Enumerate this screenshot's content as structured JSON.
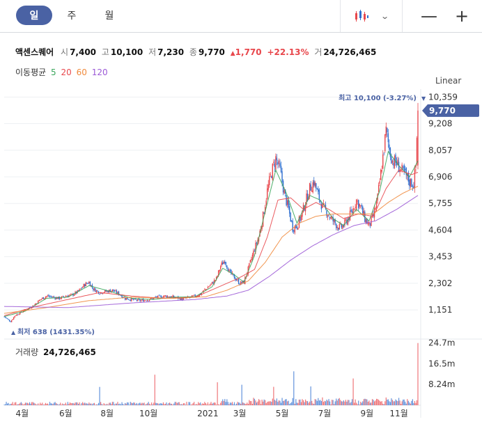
{
  "toolbar": {
    "period_tabs": [
      "일",
      "주",
      "월"
    ],
    "active_period": "일",
    "chart_type_icon": "candlestick-icon",
    "zoom_out_icon": "minus-icon",
    "zoom_in_icon": "plus-icon"
  },
  "quote": {
    "name": "액센스퀘어",
    "open_label": "시",
    "open": "7,400",
    "high_label": "고",
    "high": "10,100",
    "low_label": "저",
    "low": "7,230",
    "close_label": "종",
    "close": "9,770",
    "change": "1,770",
    "change_pct": "+22.13%",
    "volume_label": "거",
    "volume": "24,726,465"
  },
  "moving_averages": {
    "label": "이동평균",
    "periods": [
      {
        "value": "5",
        "color": "#3aa65b"
      },
      {
        "value": "20",
        "color": "#e8474c"
      },
      {
        "value": "60",
        "color": "#f08a3c"
      },
      {
        "value": "120",
        "color": "#9b59d6"
      }
    ]
  },
  "scale_mode": "Linear",
  "volume_panel": {
    "label": "거래량",
    "value": "24,726,465"
  },
  "colors": {
    "up": "#e8474c",
    "down": "#2f6fd0",
    "accent": "#4a62a4"
  },
  "chart_data": {
    "type": "candlestick",
    "y_ticks": [
      "10,359",
      "9,208",
      "8,057",
      "6,906",
      "5,755",
      "4,604",
      "3,453",
      "2,302",
      "1,151"
    ],
    "y_tick_values": [
      10359,
      9208,
      8057,
      6906,
      5755,
      4604,
      3453,
      2302,
      1151
    ],
    "ylim": [
      0,
      10359
    ],
    "x_ticks": [
      "4월",
      "6월",
      "8월",
      "10월",
      "2021",
      "3월",
      "5월",
      "7월",
      "9월",
      "11월"
    ],
    "current_price_label": "9,770",
    "current_price": 9770,
    "high_annotation": "최고 10,100 (-3.27%)",
    "high_value": 10100,
    "low_annotation": "최저 638 (1431.35%)",
    "low_value": 638,
    "volume_ticks": [
      "24.7m",
      "16.5m",
      "8.24m"
    ],
    "volume_tick_values": [
      24.7,
      16.5,
      8.24
    ],
    "volume_unit": "m",
    "close_path": [
      [
        0,
        860
      ],
      [
        6,
        640
      ],
      [
        10,
        900
      ],
      [
        16,
        1050
      ],
      [
        20,
        1150
      ],
      [
        28,
        1350
      ],
      [
        34,
        1600
      ],
      [
        40,
        1750
      ],
      [
        46,
        1700
      ],
      [
        52,
        1650
      ],
      [
        58,
        1750
      ],
      [
        64,
        1800
      ],
      [
        70,
        1950
      ],
      [
        76,
        2250
      ],
      [
        80,
        2350
      ],
      [
        84,
        2050
      ],
      [
        90,
        1900
      ],
      [
        96,
        1950
      ],
      [
        102,
        2000
      ],
      [
        108,
        1850
      ],
      [
        114,
        1650
      ],
      [
        120,
        1600
      ],
      [
        128,
        1550
      ],
      [
        136,
        1600
      ],
      [
        144,
        1700
      ],
      [
        152,
        1750
      ],
      [
        160,
        1700
      ],
      [
        168,
        1620
      ],
      [
        176,
        1700
      ],
      [
        184,
        1800
      ],
      [
        190,
        2050
      ],
      [
        196,
        2300
      ],
      [
        200,
        2500
      ],
      [
        204,
        3050
      ],
      [
        208,
        3300
      ],
      [
        212,
        2800
      ],
      [
        218,
        2500
      ],
      [
        222,
        2300
      ],
      [
        226,
        2350
      ],
      [
        232,
        3200
      ],
      [
        236,
        3800
      ],
      [
        240,
        4300
      ],
      [
        244,
        5200
      ],
      [
        248,
        6300
      ],
      [
        252,
        7100
      ],
      [
        256,
        7700
      ],
      [
        260,
        7200
      ],
      [
        264,
        6200
      ],
      [
        268,
        5500
      ],
      [
        272,
        4700
      ],
      [
        276,
        4800
      ],
      [
        280,
        5200
      ],
      [
        284,
        5800
      ],
      [
        288,
        6400
      ],
      [
        292,
        6700
      ],
      [
        296,
        6100
      ],
      [
        300,
        5600
      ],
      [
        304,
        5400
      ],
      [
        308,
        5100
      ],
      [
        312,
        4900
      ],
      [
        316,
        4700
      ],
      [
        320,
        4800
      ],
      [
        324,
        5100
      ],
      [
        328,
        5400
      ],
      [
        332,
        5900
      ],
      [
        336,
        5600
      ],
      [
        340,
        5100
      ],
      [
        344,
        4800
      ],
      [
        348,
        5200
      ],
      [
        352,
        6000
      ],
      [
        356,
        7400
      ],
      [
        360,
        8900
      ],
      [
        363,
        8100
      ],
      [
        366,
        7600
      ],
      [
        370,
        7500
      ],
      [
        374,
        7200
      ],
      [
        378,
        7000
      ],
      [
        382,
        6700
      ],
      [
        386,
        6600
      ],
      [
        388,
        7400
      ],
      [
        390,
        9770
      ]
    ],
    "ma_paths": {
      "5": [
        [
          0,
          860
        ],
        [
          20,
          1100
        ],
        [
          40,
          1650
        ],
        [
          60,
          1700
        ],
        [
          80,
          2200
        ],
        [
          100,
          1950
        ],
        [
          120,
          1650
        ],
        [
          140,
          1600
        ],
        [
          160,
          1700
        ],
        [
          180,
          1720
        ],
        [
          196,
          2150
        ],
        [
          206,
          2950
        ],
        [
          216,
          2700
        ],
        [
          226,
          2350
        ],
        [
          236,
          3500
        ],
        [
          246,
          5400
        ],
        [
          256,
          7200
        ],
        [
          266,
          6200
        ],
        [
          276,
          4900
        ],
        [
          288,
          6100
        ],
        [
          298,
          5900
        ],
        [
          310,
          5100
        ],
        [
          320,
          4800
        ],
        [
          332,
          5500
        ],
        [
          344,
          5000
        ],
        [
          354,
          6300
        ],
        [
          362,
          8000
        ],
        [
          372,
          7400
        ],
        [
          382,
          6900
        ],
        [
          390,
          7600
        ]
      ],
      "20": [
        [
          0,
          900
        ],
        [
          30,
          1300
        ],
        [
          60,
          1600
        ],
        [
          90,
          1900
        ],
        [
          120,
          1750
        ],
        [
          150,
          1650
        ],
        [
          180,
          1700
        ],
        [
          200,
          2100
        ],
        [
          220,
          2500
        ],
        [
          236,
          2900
        ],
        [
          248,
          4300
        ],
        [
          258,
          5900
        ],
        [
          270,
          6000
        ],
        [
          282,
          5500
        ],
        [
          294,
          5800
        ],
        [
          306,
          5500
        ],
        [
          320,
          5100
        ],
        [
          334,
          5300
        ],
        [
          348,
          5200
        ],
        [
          360,
          6400
        ],
        [
          372,
          7200
        ],
        [
          384,
          7000
        ],
        [
          390,
          7100
        ]
      ],
      "60": [
        [
          0,
          1000
        ],
        [
          40,
          1250
        ],
        [
          80,
          1550
        ],
        [
          120,
          1700
        ],
        [
          160,
          1650
        ],
        [
          190,
          1720
        ],
        [
          210,
          2000
        ],
        [
          230,
          2400
        ],
        [
          246,
          3200
        ],
        [
          262,
          4300
        ],
        [
          278,
          4900
        ],
        [
          294,
          5200
        ],
        [
          310,
          5300
        ],
        [
          330,
          5300
        ],
        [
          348,
          5300
        ],
        [
          362,
          5800
        ],
        [
          376,
          6200
        ],
        [
          390,
          6500
        ]
      ],
      "120": [
        [
          0,
          1300
        ],
        [
          60,
          1250
        ],
        [
          120,
          1450
        ],
        [
          180,
          1600
        ],
        [
          210,
          1750
        ],
        [
          230,
          2000
        ],
        [
          250,
          2600
        ],
        [
          270,
          3300
        ],
        [
          290,
          3900
        ],
        [
          310,
          4400
        ],
        [
          330,
          4800
        ],
        [
          350,
          5000
        ],
        [
          370,
          5500
        ],
        [
          390,
          6100
        ]
      ]
    }
  }
}
